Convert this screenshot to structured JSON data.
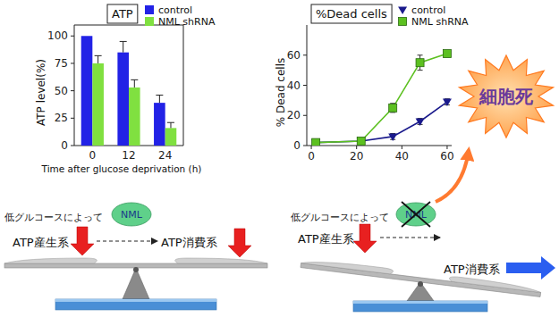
{
  "chart_data": [
    {
      "type": "bar",
      "title": "ATP",
      "y_label": "ATP level(%)",
      "x_label": "Time after glucose deprivation (h)",
      "categories": [
        "0",
        "12",
        "24"
      ],
      "series": [
        {
          "name": "control",
          "color": "#2222e6",
          "values": [
            100,
            85,
            39
          ],
          "errors": [
            null,
            10,
            7
          ]
        },
        {
          "name": "NML shRNA",
          "color": "#80e040",
          "values": [
            75,
            53,
            16
          ],
          "errors": [
            7,
            7,
            5
          ]
        }
      ],
      "ylim": [
        0,
        110
      ],
      "yticks": [
        0,
        25,
        50,
        75,
        100
      ],
      "grid": false,
      "legend": "upper-right"
    },
    {
      "type": "line",
      "title": "%Dead cells",
      "y_label": "% Dead cells",
      "x": [
        2,
        22,
        36,
        48,
        60
      ],
      "series": [
        {
          "name": "control",
          "color": "#1a1a8c",
          "marker": "triangle-down",
          "values": [
            2,
            3,
            6,
            16,
            29
          ],
          "errors": [
            null,
            null,
            2,
            2,
            2
          ]
        },
        {
          "name": "NML shRNA",
          "color": "#5cc020",
          "marker": "square",
          "values": [
            2,
            3,
            25,
            55,
            61
          ],
          "errors": [
            null,
            null,
            3,
            5,
            2
          ]
        }
      ],
      "xlim": [
        -2,
        62
      ],
      "xticks": [
        0,
        20,
        40,
        60
      ],
      "ylim": [
        0,
        80
      ],
      "yticks": [
        0,
        20,
        40,
        60
      ],
      "grid": false,
      "legend": "upper-left"
    }
  ],
  "diagram": {
    "left": {
      "cause": "低グルコースによって",
      "producer": "ATP産生系",
      "regulator": "NML",
      "consumer": "ATP消費系"
    },
    "right": {
      "cause": "低グルコースによって",
      "producer": "ATP産生系",
      "regulator": "NML",
      "consumer": "ATP消費系"
    },
    "outcome": "細胞死"
  }
}
